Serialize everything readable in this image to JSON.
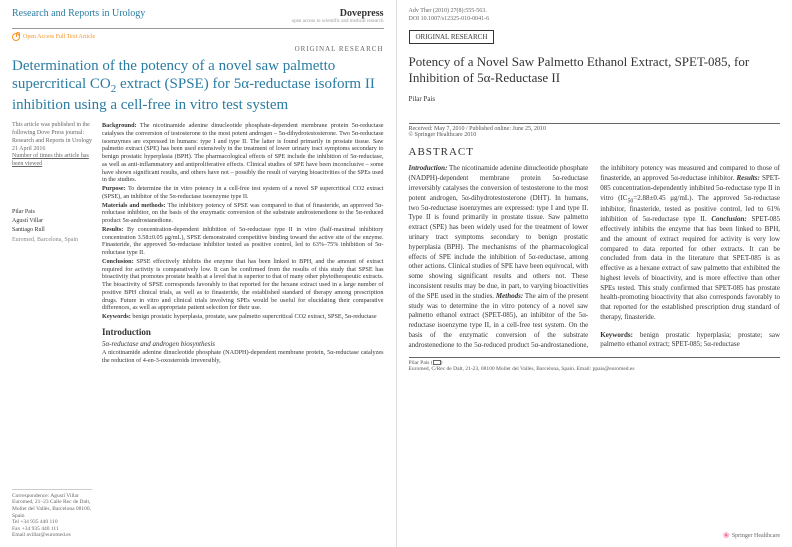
{
  "left": {
    "journal": "Research and Reports in Urology",
    "publisher": "Dovepress",
    "publisher_sub": "open access to scientific and medical research",
    "access_badge": "Open Access Full Text Article",
    "section_label": "ORIGINAL RESEARCH",
    "title_html": "Determination of the potency of a novel saw palmetto supercritical CO<sub class='sub'>2</sub> extract (SPSE) for 5<span class='greek'>α</span>-reductase isoform II inhibition using a cell-free in vitro test system",
    "pubinfo": {
      "l1": "This article was published in the following Dove Press journal:",
      "l2": "Research and Reports in Urology",
      "l3": "21 April 2016",
      "l4": "Number of times this article has been viewed"
    },
    "authors": [
      "Pilar Pais",
      "Agustí Villar",
      "Santiago Rull"
    ],
    "affiliation": "Euromed, Barcelona, Spain",
    "abstract": {
      "background": "The nicotinamide adenine dinucleotide phosphate-dependent membrane protein 5α-reductase catalyses the conversion of testosterone to the most potent androgen – 5α-dihydrotestosterone. Two 5α-reductase isoenzymes are expressed in humans: type I and type II. The latter is found primarily in prostate tissue. Saw palmetto extract (SPE) has been used extensively in the treatment of lower urinary tract symptoms secondary to benign prostatic hyperplasia (BPH). The pharmacological effects of SPE include the inhibition of 5α-reductase, as well as anti-inflammatory and antiproliferative effects. Clinical studies of SPE have been inconclusive – some have shown significant results, and others have not – possibly the result of varying bioactivities of the SPEs used in the studies.",
      "purpose": "To determine the in vitro potency in a cell-free test system of a novel SP supercritical CO2 extract (SPSE), an inhibitor of the 5α-reductase isoenzyme type II.",
      "methods": "The inhibitory potency of SPSE was compared to that of finasteride, an approved 5α-reductase inhibitor, on the basis of the enzymatic conversion of the substrate androstenedione to the 5α-reduced product 5α-androstanedione.",
      "results": "By concentration-dependent inhibition of 5α-reductase type II in vitro (half-maximal inhibitory concentration 3.58±0.05 μg/mL), SPSE demonstrated competitive binding toward the active site of the enzyme. Finasteride, the approved 5α-reductase inhibitor tested as positive control, led to 63%–75% inhibition of 5α-reductase type II.",
      "conclusion": "SPSE effectively inhibits the enzyme that has been linked to BPH, and the amount of extract required for activity is comparatively low. It can be confirmed from the results of this study that SPSE has bioactivity that promotes prostate health at a level that is superior to that of many other phytotherapeutic extracts. The bioactivity of SPSE corresponds favorably to that reported for the hexane extract used in a large number of positive BPH clinical trials, as well as to finasteride, the established standard of therapy among prescription drugs. Future in vitro and clinical trials involving SPEs would be useful for elucidating their comparative differences, as well as appropriate patient selection for their use.",
      "keywords": "benign prostatic hyperplasia, prostate, saw palmetto supercritical CO2 extract, SPSE, 5α-reductase"
    },
    "intro_heading": "Introduction",
    "sub_heading": "5α-reductase and androgen biosynthesis",
    "intro_body": "A nicotinamide adenine dinucleotide phosphate (NADPH)-dependent membrane protein, 5α-reductase catalyzes the reduction of 4-en-3-oxosteroids irreversibly,",
    "correspondence": {
      "label": "Correspondence: Agustí Villar",
      "lines": "Euromed, 21–23 Calle Rec de Dalt, Mollet del Vallès, Barcelona 08100, Spain\nTel +34 935 440 110\nFax +34 935 440 111\nEmail avillar@euromed.es"
    }
  },
  "right": {
    "header": {
      "citation": "Adv Ther (2010)  27(8):555-563.",
      "doi": "DOI 10.1007/s12325-010-0041-6"
    },
    "section_label": "ORIGINAL RESEARCH",
    "title_html": "Potency of a Novel Saw Palmetto Ethanol Extract, SPET-085, for Inhibition of 5<span class='greek'>α</span>-Reductase II",
    "author": "Pilar Pais",
    "received": "Received: May 7, 2010 / Published online: June 25, 2010",
    "copyright": "© Springer Healthcare 2010",
    "abstract_heading": "ABSTRACT",
    "abstract_html": "<em>Introduction:</em> The nicotinamide adenine dinucleotide phosphate (NADPH)-dependent membrane protein 5α-reductase irreversibly catalyses the conversion of testosterone to the most potent androgen, 5α-dihydrotestosterone (DHT). In humans, two 5α-reductase isoenzymes are expressed: type I and type II. Type II is found primarily in prostate tissue. Saw palmetto extract (SPE) has been widely used for the treatment of lower urinary tract symptoms secondary to benign prostatic hyperplasia (BPH). The mechanisms of the pharmacological effects of SPE include the inhibition of 5α-reductase, among other actions. Clinical studies of SPE have been equivocal, with some showing significant results and others not. These inconsistent results may be due, in part, to varying bioactivities of the SPE used in the studies. <em>Methods:</em> The aim of the present study was to determine the in vitro potency of a novel saw palmetto ethanol extract (SPET-085), an inhibitor of the 5α-reductase isoenzyme type II, in a cell-free test system. On the basis of the enzymatic conversion of the substrate androstenedione to the 5α-reduced product 5α-androstanedione, the inhibitory potency was measured and compared to those of finasteride, an approved 5α-reductase inhibitor. <em>Results:</em> SPET-085 concentration-dependently inhibited 5α-reductase type II in vitro (IC<sub>50</sub>=2.88±0.45 μg/mL). The approved 5α-reductase inhibitor, finasteride, tested as positive control, led to 61% inhibition of 5α-reductase type II. <em>Conclusion:</em> SPET-085 effectively inhibits the enzyme that has been linked to BPH, and the amount of extract required for activity is very low compared to data reported for other extracts. It can be concluded from data in the literature that SPET-085 is as effective as a hexane extract of saw palmetto that exhibited the highest levels of bioactivity, and is more effective than other SPEs tested. This study confirmed that SPET-085 has prostate health-promoting bioactivity that also corresponds favorably to that reported for the established prescription drug standard of therapy, finasteride.",
    "keywords": "benign prostatic hyperplasia; prostate; saw palmetto ethanol extract; SPET-085; 5α-reductase",
    "footer": {
      "name": "Pilar Pais",
      "addr": "Euromed, C/Rec de Dalt, 21-23, 08100 Mollet del Vallès, Barcelona, Spain. Email: ppais@euromed.es"
    },
    "springer": "Springer Healthcare"
  }
}
